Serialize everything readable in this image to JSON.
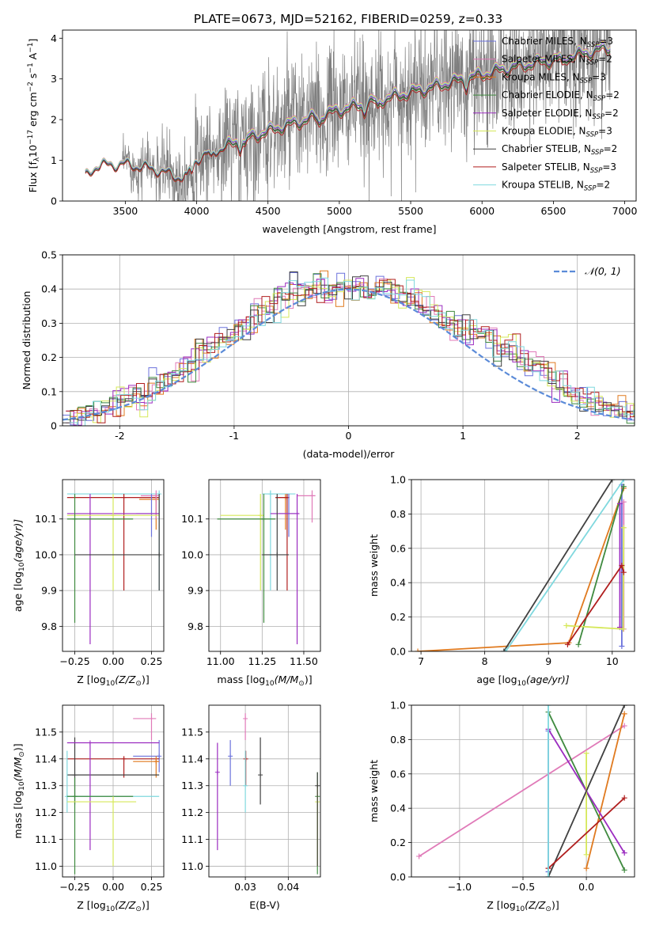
{
  "figure_title": "PLATE=0673, MJD=52162, FIBERID=0259, z=0.33",
  "colors": {
    "Chabrier MILES": "#6b72dc",
    "Salpeter MILES": "#e07ab8",
    "Kroupa MILES": "#e07a1f",
    "Chabrier ELODIE": "#3f8a3f",
    "Salpeter ELODIE": "#9b2cc0",
    "Kroupa ELODIE": "#d6e85a",
    "Chabrier STELIB": "#404040",
    "Salpeter STELIB": "#b01e1e",
    "Kroupa STELIB": "#7fd8de",
    "data": "#7f7f7f",
    "normal": "#5b8bd8"
  },
  "chart_data": [
    {
      "id": "spectrum",
      "type": "line",
      "xlabel": "wavelength [Angstrom, rest frame]",
      "ylabel": "Flux [f",
      "ylabel_unit": "λ",
      "ylabel_rest": "10",
      "ylabel_exp1": "−17",
      "ylabel_mid": " erg cm",
      "ylabel_exp2": "−2",
      "ylabel_mid2": " s",
      "ylabel_exp3": "−1",
      "ylabel_end": " A",
      "ylabel_exp4": "−1",
      "ylabel_close": "]",
      "xlim": [
        3060,
        7080
      ],
      "ylim": [
        0,
        4.2
      ],
      "xticks": [
        3500,
        4000,
        4500,
        5000,
        5500,
        6000,
        6500,
        7000
      ],
      "yticks": [
        0,
        1,
        2,
        3,
        4
      ],
      "model_range": [
        3220,
        6900
      ],
      "data_range": [
        3220,
        6900
      ],
      "legend_location": "upper right",
      "series": [
        {
          "name": "Chabrier MILES",
          "n_ssp": "3"
        },
        {
          "name": "Salpeter MILES",
          "n_ssp": "2"
        },
        {
          "name": "Kroupa MILES",
          "n_ssp": "3"
        },
        {
          "name": "Chabrier ELODIE",
          "n_ssp": "2"
        },
        {
          "name": "Salpeter ELODIE",
          "n_ssp": "2"
        },
        {
          "name": "Kroupa ELODIE",
          "n_ssp": "3"
        },
        {
          "name": "Chabrier STELIB",
          "n_ssp": "2"
        },
        {
          "name": "Salpeter STELIB",
          "n_ssp": "3"
        },
        {
          "name": "Kroupa STELIB",
          "n_ssp": "2"
        }
      ],
      "continuum_points": [
        [
          3220,
          0.6
        ],
        [
          3300,
          0.88
        ],
        [
          3500,
          0.92
        ],
        [
          3700,
          0.8
        ],
        [
          3900,
          0.58
        ],
        [
          4000,
          1.05
        ],
        [
          4300,
          1.5
        ],
        [
          4600,
          1.85
        ],
        [
          5000,
          2.25
        ],
        [
          5400,
          2.6
        ],
        [
          5800,
          2.95
        ],
        [
          6200,
          3.3
        ],
        [
          6600,
          3.55
        ],
        [
          6900,
          3.8
        ]
      ]
    },
    {
      "id": "residuals",
      "type": "line",
      "xlabel": "(data-model)/error",
      "ylabel": "Normed distribution",
      "xlim": [
        -2.5,
        2.5
      ],
      "ylim": [
        0,
        0.5
      ],
      "xticks": [
        -2,
        -1,
        0,
        1,
        2
      ],
      "yticks": [
        0.0,
        0.1,
        0.2,
        0.3,
        0.4,
        0.5
      ],
      "legend": "𝒩(0, 1)",
      "legend_location": "upper right",
      "bin_width": 0.1,
      "hist_reference": [
        0.02,
        0.025,
        0.03,
        0.04,
        0.045,
        0.06,
        0.07,
        0.075,
        0.08,
        0.09,
        0.1,
        0.12,
        0.13,
        0.15,
        0.16,
        0.17,
        0.19,
        0.21,
        0.22,
        0.24,
        0.26,
        0.27,
        0.3,
        0.31,
        0.33,
        0.34,
        0.35,
        0.37,
        0.38,
        0.41,
        0.39,
        0.4,
        0.42,
        0.39,
        0.4,
        0.41,
        0.4,
        0.41,
        0.4,
        0.39,
        0.42,
        0.39,
        0.38,
        0.39,
        0.37,
        0.35,
        0.33,
        0.31,
        0.3,
        0.29,
        0.3,
        0.28,
        0.27,
        0.26,
        0.25,
        0.22,
        0.23,
        0.2,
        0.19,
        0.18,
        0.17,
        0.15,
        0.13,
        0.11,
        0.1,
        0.085,
        0.08,
        0.07,
        0.06,
        0.05,
        0.045,
        0.035,
        0.03,
        0.025
      ]
    },
    {
      "id": "age_vs_Z",
      "type": "scatter",
      "xlabel": "Z [log",
      "xlabel_sub": "10",
      "xlabel_end": "(Z/Z",
      "xlabel_sun": "⊙",
      "xlabel_close": ")]",
      "ylabel": "age  [log",
      "ylabel_sub": "10",
      "ylabel_end": "(age/yr)]",
      "xlim": [
        -0.33,
        0.33
      ],
      "ylim": [
        9.73,
        10.21
      ],
      "xticks": [
        -0.25,
        0.0,
        0.25
      ],
      "xticklabels": [
        "−0.25",
        "0.00",
        "0.25"
      ],
      "yticks": [
        9.8,
        9.9,
        10.0,
        10.1
      ],
      "yticklabels": [
        "9.8",
        "9.9",
        "10.0",
        "10.1"
      ],
      "errorbars": [
        {
          "s": "Kroupa STELIB",
          "x": 0.3,
          "y": 10.17,
          "xl": -0.3,
          "xh": 0.3,
          "yl": 9.9,
          "yh": 10.18
        },
        {
          "s": "Salpeter STELIB",
          "x": 0.07,
          "y": 10.16,
          "xl": -0.3,
          "xh": 0.3,
          "yl": 9.9,
          "yh": 10.17
        },
        {
          "s": "Kroupa MILES",
          "x": 0.28,
          "y": 10.155,
          "xl": 0.17,
          "xh": 0.3,
          "yl": 10.07,
          "yh": 10.17
        },
        {
          "s": "Salpeter MILES",
          "x": 0.28,
          "y": 10.165,
          "xl": 0.18,
          "xh": 0.3,
          "yl": 10.1,
          "yh": 10.18
        },
        {
          "s": "Chabrier MILES",
          "x": 0.25,
          "y": 10.115,
          "xl": 0.15,
          "xh": 0.3,
          "yl": 10.05,
          "yh": 10.17
        },
        {
          "s": "Salpeter ELODIE",
          "x": -0.15,
          "y": 10.115,
          "xl": -0.3,
          "xh": 0.3,
          "yl": 9.75,
          "yh": 10.17
        },
        {
          "s": "Kroupa ELODIE",
          "x": 0.0,
          "y": 10.11,
          "xl": -0.3,
          "xh": 0.3,
          "yl": 9.9,
          "yh": 10.17
        },
        {
          "s": "Chabrier ELODIE",
          "x": -0.25,
          "y": 10.1,
          "xl": -0.3,
          "xh": 0.13,
          "yl": 9.81,
          "yh": 10.17
        },
        {
          "s": "Chabrier STELIB",
          "x": 0.3,
          "y": 10.0,
          "xl": -0.25,
          "xh": 0.3,
          "yl": 9.9,
          "yh": 10.17
        }
      ]
    },
    {
      "id": "age_vs_mass",
      "type": "scatter",
      "xlabel": "mass [log",
      "xlabel_sub": "10",
      "xlabel_end": "(M/M",
      "xlabel_sun": "⊙",
      "xlabel_close": ")]",
      "ylabel": "",
      "xlim": [
        10.93,
        11.6
      ],
      "ylim": [
        9.73,
        10.21
      ],
      "xticks": [
        11.0,
        11.25,
        11.5
      ],
      "xticklabels": [
        "11.00",
        "11.25",
        "11.50"
      ],
      "yticks": [
        9.8,
        9.9,
        10.0,
        10.1
      ],
      "yticklabels": [
        "9.8",
        "9.9",
        "10.0",
        "10.1"
      ],
      "errorbars": [
        {
          "s": "Kroupa STELIB",
          "x": 11.3,
          "y": 10.17,
          "xl": 11.25,
          "xh": 11.45,
          "yl": 9.9,
          "yh": 10.18
        },
        {
          "s": "Salpeter MILES",
          "x": 11.55,
          "y": 10.165,
          "xl": 11.46,
          "xh": 11.57,
          "yl": 10.09,
          "yh": 10.18
        },
        {
          "s": "Kroupa MILES",
          "x": 11.39,
          "y": 10.16,
          "xl": 11.33,
          "xh": 11.41,
          "yl": 10.07,
          "yh": 10.17
        },
        {
          "s": "Salpeter STELIB",
          "x": 11.4,
          "y": 10.16,
          "xl": 11.33,
          "xh": 11.41,
          "yl": 9.9,
          "yh": 10.17
        },
        {
          "s": "Chabrier MILES",
          "x": 11.41,
          "y": 10.115,
          "xl": 11.35,
          "xh": 11.47,
          "yl": 10.05,
          "yh": 10.17
        },
        {
          "s": "Salpeter ELODIE",
          "x": 11.46,
          "y": 10.115,
          "xl": 11.3,
          "xh": 11.47,
          "yl": 9.75,
          "yh": 10.17
        },
        {
          "s": "Kroupa ELODIE",
          "x": 11.24,
          "y": 10.11,
          "xl": 11.0,
          "xh": 11.26,
          "yl": 9.9,
          "yh": 10.17
        },
        {
          "s": "Chabrier ELODIE",
          "x": 11.26,
          "y": 10.1,
          "xl": 10.98,
          "xh": 11.33,
          "yl": 9.81,
          "yh": 10.17
        },
        {
          "s": "Chabrier STELIB",
          "x": 11.34,
          "y": 10.0,
          "xl": 11.25,
          "xh": 11.41,
          "yl": 9.9,
          "yh": 10.17
        }
      ]
    },
    {
      "id": "massweight_vs_age",
      "type": "line",
      "xlabel": "age  [log",
      "xlabel_sub": "10",
      "xlabel_end": "(age/yr)]",
      "ylabel": "mass weight",
      "xlim": [
        6.85,
        10.35
      ],
      "ylim": [
        0,
        1
      ],
      "xticks": [
        7,
        8,
        9,
        10
      ],
      "xticklabels": [
        "7",
        "8",
        "9",
        "10"
      ],
      "yticks": [
        0,
        0.2,
        0.4,
        0.6,
        0.8,
        1.0
      ],
      "yticklabels": [
        "0.0",
        "0.2",
        "0.4",
        "0.6",
        "0.8",
        "1.0"
      ],
      "series": [
        {
          "s": "Chabrier MILES",
          "x": [
            10.15,
            10.15
          ],
          "y": [
            0.03,
            0.97
          ]
        },
        {
          "s": "Salpeter MILES",
          "x": [
            10.18,
            10.18
          ],
          "y": [
            0.13,
            0.87
          ]
        },
        {
          "s": "Kroupa MILES",
          "x": [
            6.95,
            9.32,
            10.18
          ],
          "y": [
            0.0,
            0.05,
            0.95
          ]
        },
        {
          "s": "Chabrier ELODIE",
          "x": [
            9.47,
            10.18
          ],
          "y": [
            0.04,
            0.96
          ]
        },
        {
          "s": "Salpeter ELODIE",
          "x": [
            10.12,
            10.12
          ],
          "y": [
            0.14,
            0.86
          ]
        },
        {
          "s": "Kroupa ELODIE",
          "x": [
            9.28,
            10.17,
            10.18
          ],
          "y": [
            0.15,
            0.13,
            0.72
          ]
        },
        {
          "s": "Chabrier STELIB",
          "x": [
            8.3,
            10.0
          ],
          "y": [
            0.0,
            1.0
          ]
        },
        {
          "s": "Salpeter STELIB",
          "x": [
            9.3,
            10.15,
            10.18
          ],
          "y": [
            0.04,
            0.5,
            0.46
          ]
        },
        {
          "s": "Kroupa STELIB",
          "x": [
            8.33,
            10.18
          ],
          "y": [
            0.0,
            1.0
          ]
        }
      ]
    },
    {
      "id": "mass_vs_Z",
      "type": "scatter",
      "xlabel": "Z [log",
      "xlabel_sub": "10",
      "xlabel_end": "(Z/Z",
      "xlabel_sun": "⊙",
      "xlabel_close": ")]",
      "ylabel": "mass [log",
      "ylabel_sub": "10",
      "ylabel_end": "(M/M",
      "ylabel_sun": "⊙",
      "ylabel_close": ")]",
      "xlim": [
        -0.33,
        0.33
      ],
      "ylim": [
        10.96,
        11.6
      ],
      "xticks": [
        -0.25,
        0.0,
        0.25
      ],
      "xticklabels": [
        "−0.25",
        "0.00",
        "0.25"
      ],
      "yticks": [
        11.0,
        11.1,
        11.2,
        11.3,
        11.4,
        11.5
      ],
      "yticklabels": [
        "11.0",
        "11.1",
        "11.2",
        "11.3",
        "11.4",
        "11.5"
      ],
      "errorbars": [
        {
          "s": "Salpeter MILES",
          "x": 0.25,
          "y": 11.55,
          "xl": 0.13,
          "xh": 0.28,
          "yl": 11.47,
          "yh": 11.57
        },
        {
          "s": "Chabrier MILES",
          "x": 0.3,
          "y": 11.41,
          "xl": 0.13,
          "xh": 0.3,
          "yl": 11.35,
          "yh": 11.47
        },
        {
          "s": "Salpeter STELIB",
          "x": 0.07,
          "y": 11.4,
          "xl": -0.3,
          "xh": 0.3,
          "yl": 11.33,
          "yh": 11.41
        },
        {
          "s": "Kroupa MILES",
          "x": 0.28,
          "y": 11.39,
          "xl": 0.13,
          "xh": 0.3,
          "yl": 11.33,
          "yh": 11.41
        },
        {
          "s": "Chabrier STELIB",
          "x": -0.25,
          "y": 11.34,
          "xl": -0.3,
          "xh": 0.3,
          "yl": 11.23,
          "yh": 11.48
        },
        {
          "s": "Salpeter ELODIE",
          "x": -0.15,
          "y": 11.46,
          "xl": -0.3,
          "xh": 0.3,
          "yl": 11.06,
          "yh": 11.46
        },
        {
          "s": "Kroupa STELIB",
          "x": -0.3,
          "y": 11.26,
          "xl": -0.3,
          "xh": 0.3,
          "yl": 11.2,
          "yh": 11.43
        },
        {
          "s": "Chabrier ELODIE",
          "x": -0.25,
          "y": 11.26,
          "xl": -0.3,
          "xh": 0.13,
          "yl": 10.97,
          "yh": 11.33
        },
        {
          "s": "Kroupa ELODIE",
          "x": 0.0,
          "y": 11.24,
          "xl": -0.3,
          "xh": 0.15,
          "yl": 11.0,
          "yh": 11.26
        }
      ]
    },
    {
      "id": "mass_vs_ebv",
      "type": "scatter",
      "xlabel": "E(B-V)",
      "ylabel": "",
      "xlim": [
        0.0215,
        0.0475
      ],
      "ylim": [
        10.96,
        11.6
      ],
      "xticks": [
        0.03,
        0.04
      ],
      "xticklabels": [
        "0.03",
        "0.04"
      ],
      "yticks": [
        11.0,
        11.1,
        11.2,
        11.3,
        11.4,
        11.5
      ],
      "yticklabels": [
        "11.0",
        "11.1",
        "11.2",
        "11.3",
        "11.4",
        "11.5"
      ],
      "errorbars": [
        {
          "s": "Salpeter MILES",
          "x": 0.03,
          "y": 11.55,
          "xl": 0.03,
          "xh": 0.03,
          "yl": 11.47,
          "yh": 11.57
        },
        {
          "s": "Salpeter STELIB",
          "x": 0.0301,
          "y": 11.4,
          "xl": 0.0301,
          "xh": 0.0301,
          "yl": 11.3,
          "yh": 11.43
        },
        {
          "s": "Chabrier STELIB",
          "x": 0.0335,
          "y": 11.34,
          "xl": 0.0335,
          "xh": 0.0335,
          "yl": 11.23,
          "yh": 11.48
        },
        {
          "s": "Chabrier MILES",
          "x": 0.0265,
          "y": 11.41,
          "xl": 0.0265,
          "xh": 0.0265,
          "yl": 11.3,
          "yh": 11.47
        },
        {
          "s": "Salpeter ELODIE",
          "x": 0.0235,
          "y": 11.35,
          "xl": 0.0235,
          "xh": 0.0235,
          "yl": 11.06,
          "yh": 11.46
        },
        {
          "s": "Kroupa STELIB",
          "x": 0.03,
          "y": 11.3,
          "xl": 0.03,
          "xh": 0.03,
          "yl": 11.2,
          "yh": 11.43
        },
        {
          "s": "Chabrier ELODIE",
          "x": 0.0468,
          "y": 11.26,
          "xl": 0.0468,
          "xh": 0.0468,
          "yl": 10.97,
          "yh": 11.35
        },
        {
          "s": "Kroupa ELODIE",
          "x": 0.0468,
          "y": 11.24,
          "xl": 0.0468,
          "xh": 0.0468,
          "yl": 11.0,
          "yh": 11.31
        },
        {
          "s": "Chabrier STELIB",
          "x": 0.0468,
          "y": 11.3,
          "xl": 0.0468,
          "xh": 0.0468,
          "yl": 11.0,
          "yh": 11.35
        }
      ]
    },
    {
      "id": "massweight_vs_Z",
      "type": "line",
      "xlabel": "Z [log",
      "xlabel_sub": "10",
      "xlabel_end": "(Z/Z",
      "xlabel_sun": "⊙",
      "xlabel_close": ")]",
      "ylabel": "mass weight",
      "xlim": [
        -1.38,
        0.38
      ],
      "ylim": [
        0,
        1
      ],
      "xticks": [
        -1.0,
        -0.5,
        0.0
      ],
      "xticklabels": [
        "−1.0",
        "−0.5",
        "0.0"
      ],
      "yticks": [
        0,
        0.2,
        0.4,
        0.6,
        0.8,
        1.0
      ],
      "yticklabels": [
        "0.0",
        "0.2",
        "0.4",
        "0.6",
        "0.8",
        "1.0"
      ],
      "series": [
        {
          "s": "Chabrier MILES",
          "x": [
            -0.3,
            -0.3
          ],
          "y": [
            0.03,
            0.85
          ]
        },
        {
          "s": "Salpeter MILES",
          "x": [
            -1.32,
            0.3
          ],
          "y": [
            0.12,
            0.88
          ]
        },
        {
          "s": "Kroupa MILES",
          "x": [
            0.0,
            0.3
          ],
          "y": [
            0.05,
            0.95
          ]
        },
        {
          "s": "Chabrier ELODIE",
          "x": [
            -0.3,
            0.3
          ],
          "y": [
            0.96,
            0.04
          ]
        },
        {
          "s": "Salpeter ELODIE",
          "x": [
            -0.3,
            0.3
          ],
          "y": [
            0.86,
            0.14
          ]
        },
        {
          "s": "Kroupa ELODIE",
          "x": [
            0.0,
            0.0
          ],
          "y": [
            0.13,
            0.72
          ]
        },
        {
          "s": "Chabrier STELIB",
          "x": [
            -0.3,
            0.3
          ],
          "y": [
            0.0,
            1.0
          ]
        },
        {
          "s": "Salpeter STELIB",
          "x": [
            -0.3,
            0.3
          ],
          "y": [
            0.05,
            0.46
          ]
        },
        {
          "s": "Kroupa STELIB",
          "x": [
            -0.3,
            -0.3
          ],
          "y": [
            0.0,
            1.0
          ]
        }
      ]
    }
  ]
}
